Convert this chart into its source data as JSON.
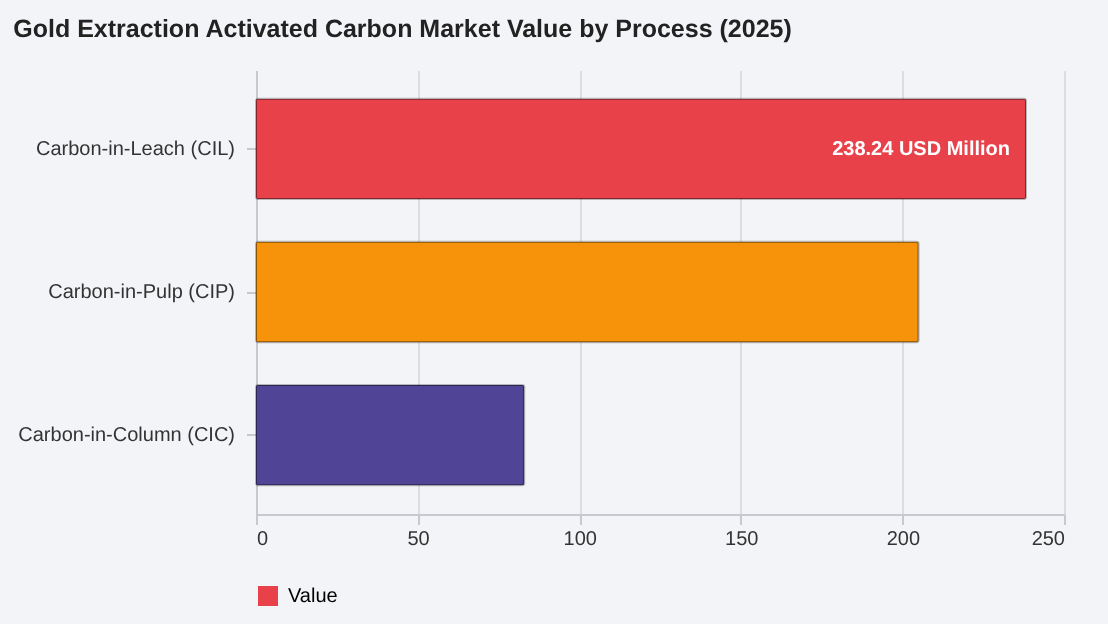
{
  "chart_data": {
    "type": "bar",
    "title": "Gold Extraction Activated Carbon Market Value by Process (2025)",
    "orientation": "horizontal",
    "categories": [
      "Carbon-in-Leach (CIL)",
      "Carbon-in-Pulp (CIP)",
      "Carbon-in-Column (CIC)"
    ],
    "series": [
      {
        "name": "Value",
        "colors": [
          "#e8414a",
          "#f7930a",
          "#4f4495"
        ],
        "values": [
          238.24,
          205,
          83
        ],
        "value_labels": [
          "238.24 USD Million",
          null,
          null
        ]
      }
    ],
    "xlim": [
      0,
      250
    ],
    "xticks": [
      0,
      50,
      100,
      150,
      200,
      250
    ],
    "grid": "x",
    "legend": "bottom"
  }
}
